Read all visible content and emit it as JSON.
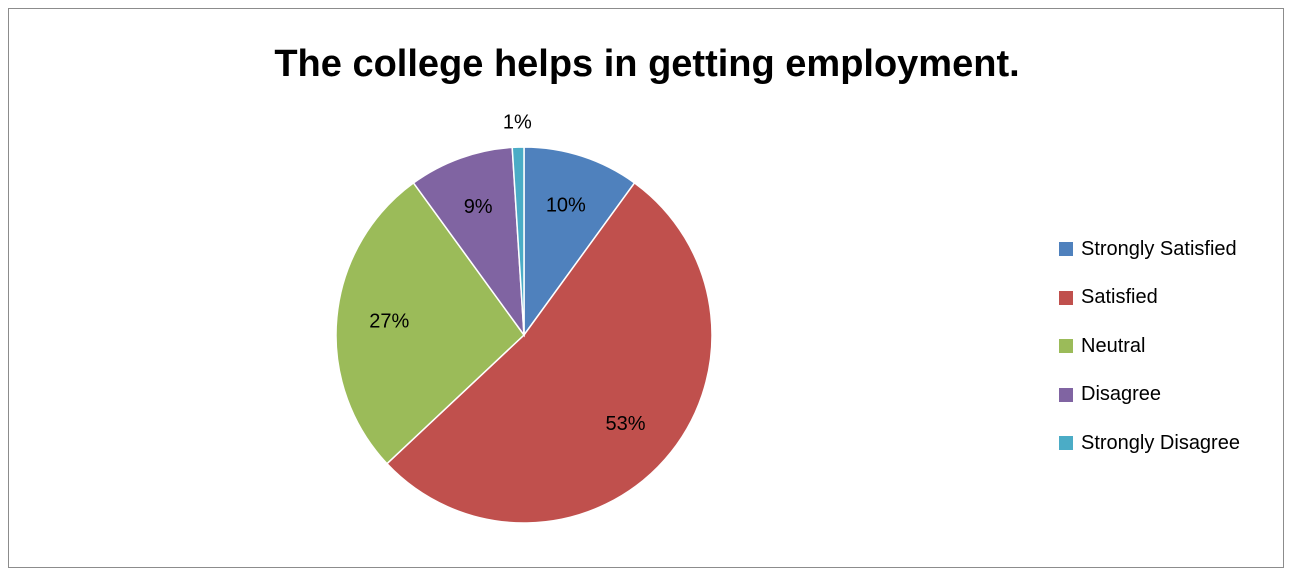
{
  "chart_data": {
    "type": "pie",
    "title": "The college helps in getting employment.",
    "categories": [
      "Strongly Satisfied",
      "Satisfied",
      "Neutral",
      "Disagree",
      "Strongly Disagree"
    ],
    "values": [
      10,
      53,
      27,
      9,
      1
    ],
    "labels": [
      "10%",
      "53%",
      "27%",
      "9%",
      "1%"
    ],
    "colors": [
      "#4f81bd",
      "#c0504d",
      "#9bbb59",
      "#8064a2",
      "#4bacc6"
    ],
    "legend_position": "right"
  }
}
